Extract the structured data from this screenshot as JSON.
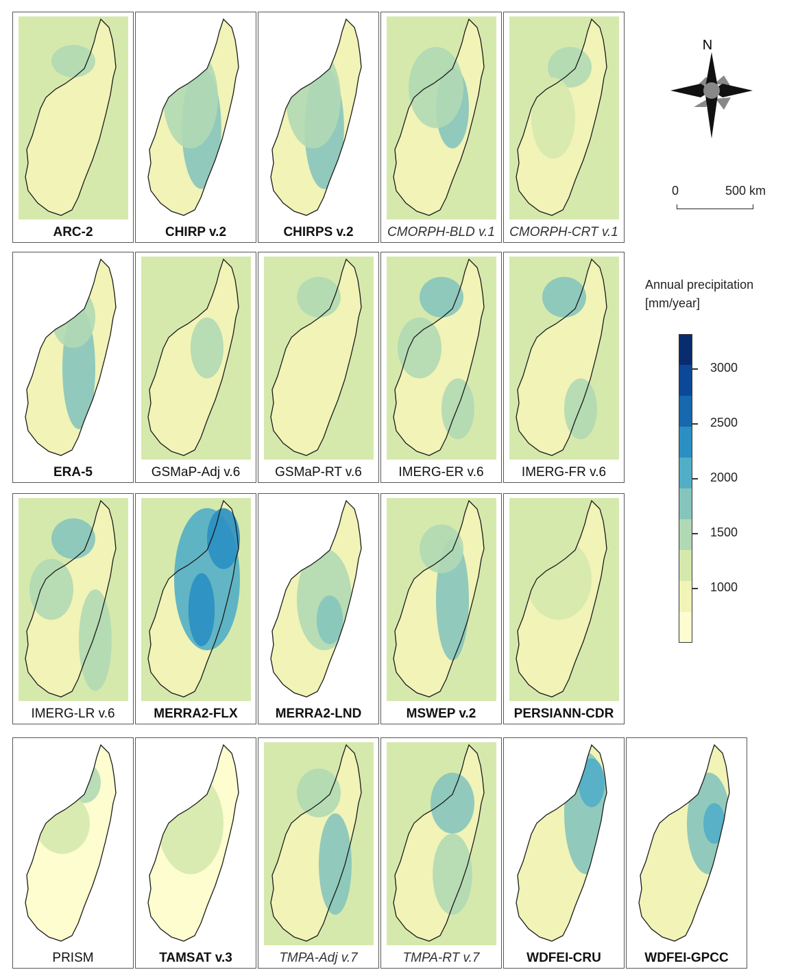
{
  "panels": [
    {
      "label": "ARC-2",
      "style": "bold",
      "base": 1,
      "wet": [
        [
          0.5,
          0.22,
          0.2,
          0.08,
          2
        ]
      ],
      "ocean": 1
    },
    {
      "label": "CHIRP v.2",
      "style": "bold",
      "base": 1,
      "wet": [
        [
          0.55,
          0.55,
          0.18,
          0.3,
          3
        ],
        [
          0.45,
          0.4,
          0.25,
          0.25,
          2
        ]
      ],
      "ocean": 0
    },
    {
      "label": "CHIRPS v.2",
      "style": "bold",
      "base": 1,
      "wet": [
        [
          0.55,
          0.55,
          0.18,
          0.3,
          3
        ],
        [
          0.45,
          0.4,
          0.25,
          0.25,
          2
        ]
      ],
      "ocean": 0
    },
    {
      "label": "CMORPH-BLD v.1",
      "style": "italic",
      "base": 1,
      "wet": [
        [
          0.6,
          0.45,
          0.15,
          0.2,
          3
        ],
        [
          0.45,
          0.35,
          0.25,
          0.2,
          2
        ]
      ],
      "ocean": 1
    },
    {
      "label": "CMORPH-CRT v.1",
      "style": "italic",
      "base": 1,
      "wet": [
        [
          0.55,
          0.25,
          0.2,
          0.1,
          2
        ],
        [
          0.4,
          0.5,
          0.2,
          0.2,
          1
        ]
      ],
      "ocean": 1
    },
    {
      "label": "ERA-5",
      "style": "bold",
      "base": 1,
      "wet": [
        [
          0.55,
          0.55,
          0.15,
          0.3,
          3
        ],
        [
          0.5,
          0.3,
          0.2,
          0.15,
          2
        ]
      ],
      "ocean": 0
    },
    {
      "label": "GSMaP-Adj v.6",
      "style": "normal",
      "base": 1,
      "wet": [
        [
          0.6,
          0.45,
          0.15,
          0.15,
          2
        ]
      ],
      "ocean": 1
    },
    {
      "label": "GSMaP-RT v.6",
      "style": "normal",
      "base": 1,
      "wet": [
        [
          0.5,
          0.2,
          0.2,
          0.1,
          2
        ]
      ],
      "ocean": 1
    },
    {
      "label": "IMERG-ER v.6",
      "style": "normal",
      "base": 1,
      "wet": [
        [
          0.5,
          0.2,
          0.2,
          0.1,
          3
        ],
        [
          0.3,
          0.45,
          0.2,
          0.15,
          2
        ],
        [
          0.65,
          0.75,
          0.15,
          0.15,
          2
        ]
      ],
      "ocean": 1
    },
    {
      "label": "IMERG-FR v.6",
      "style": "normal",
      "base": 1,
      "wet": [
        [
          0.5,
          0.2,
          0.2,
          0.1,
          3
        ],
        [
          0.65,
          0.75,
          0.15,
          0.15,
          2
        ]
      ],
      "ocean": 1
    },
    {
      "label": "IMERG-LR v.6",
      "style": "normal",
      "base": 1,
      "wet": [
        [
          0.5,
          0.2,
          0.2,
          0.1,
          3
        ],
        [
          0.3,
          0.45,
          0.2,
          0.15,
          2
        ],
        [
          0.7,
          0.7,
          0.15,
          0.25,
          2
        ]
      ],
      "ocean": 1
    },
    {
      "label": "MERRA2-FLX",
      "style": "bold",
      "base": 1,
      "wet": [
        [
          0.6,
          0.4,
          0.3,
          0.35,
          4
        ],
        [
          0.75,
          0.2,
          0.15,
          0.15,
          5
        ],
        [
          0.55,
          0.55,
          0.12,
          0.18,
          5
        ]
      ],
      "ocean": 1
    },
    {
      "label": "MERRA2-LND",
      "style": "bold",
      "base": 1,
      "wet": [
        [
          0.55,
          0.5,
          0.25,
          0.25,
          2
        ],
        [
          0.6,
          0.6,
          0.12,
          0.12,
          3
        ]
      ],
      "ocean": 0
    },
    {
      "label": "MSWEP v.2",
      "style": "bold",
      "base": 1,
      "wet": [
        [
          0.6,
          0.5,
          0.15,
          0.3,
          3
        ],
        [
          0.5,
          0.25,
          0.2,
          0.12,
          2
        ]
      ],
      "ocean": 1
    },
    {
      "label": "PERSIANN-CDR",
      "style": "bold",
      "base": 1,
      "wet": [
        [
          0.45,
          0.4,
          0.3,
          0.2,
          1
        ]
      ],
      "ocean": 1
    },
    {
      "label": "PRISM",
      "style": "normal",
      "base": 0,
      "wet": [
        [
          0.6,
          0.2,
          0.15,
          0.1,
          2
        ],
        [
          0.4,
          0.4,
          0.25,
          0.15,
          1
        ]
      ],
      "ocean": 0
    },
    {
      "label": "TAMSAT v.3",
      "style": "bold",
      "base": 0,
      "wet": [
        [
          0.45,
          0.4,
          0.3,
          0.25,
          1
        ]
      ],
      "ocean": 0
    },
    {
      "label": "TMPA-Adj v.7",
      "style": "italic",
      "base": 1,
      "wet": [
        [
          0.65,
          0.6,
          0.15,
          0.25,
          3
        ],
        [
          0.5,
          0.25,
          0.2,
          0.12,
          2
        ]
      ],
      "ocean": 1
    },
    {
      "label": "TMPA-RT v.7",
      "style": "italic",
      "base": 1,
      "wet": [
        [
          0.6,
          0.3,
          0.2,
          0.15,
          3
        ],
        [
          0.6,
          0.65,
          0.18,
          0.2,
          2
        ]
      ],
      "ocean": 1
    },
    {
      "label": "WDFEI-CRU",
      "style": "bold",
      "base": 1,
      "wet": [
        [
          0.7,
          0.35,
          0.2,
          0.3,
          3
        ],
        [
          0.75,
          0.2,
          0.12,
          0.12,
          4
        ]
      ],
      "ocean": 0
    },
    {
      "label": "WDFEI-GPCC",
      "style": "bold",
      "base": 1,
      "wet": [
        [
          0.7,
          0.4,
          0.2,
          0.25,
          3
        ],
        [
          0.75,
          0.4,
          0.1,
          0.1,
          4
        ],
        [
          0.2,
          0.05,
          0.1,
          0.05,
          4
        ]
      ],
      "ocean": 0
    }
  ],
  "compass": {
    "north_label": "N"
  },
  "scale": {
    "left_label": "0",
    "right_label": "500 km"
  },
  "legend": {
    "title_line1": "Annual precipitation",
    "title_line2": "[mm/year]",
    "ticks": [
      "3000",
      "2500",
      "2000",
      "1500",
      "1000"
    ],
    "colors": [
      "#fdfdd0",
      "#f1f3b7",
      "#d6e9ad",
      "#b1d9b4",
      "#86c5bd",
      "#52aec6",
      "#2a8fc2",
      "#1668af",
      "#0c4899",
      "#082c6e"
    ]
  }
}
